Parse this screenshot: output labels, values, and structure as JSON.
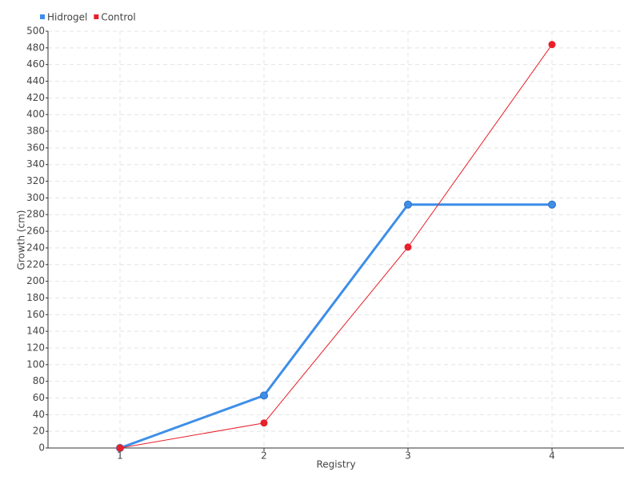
{
  "chart_data": {
    "type": "line",
    "x_label": "Registry",
    "y_label": "Growth (cm)",
    "categories": [
      "1",
      "2",
      "3",
      "4"
    ],
    "series": [
      {
        "name": "Hidrogel",
        "color": "#3d8ee8",
        "values": [
          0,
          63,
          292,
          292
        ]
      },
      {
        "name": "Control",
        "color": "#e8202a",
        "values": [
          0,
          30,
          241,
          484
        ]
      }
    ],
    "ylim": [
      0,
      500
    ],
    "yticks": [
      0,
      20,
      40,
      60,
      80,
      100,
      120,
      140,
      160,
      180,
      200,
      220,
      240,
      260,
      280,
      300,
      320,
      340,
      360,
      380,
      400,
      420,
      440,
      460,
      480,
      500
    ],
    "grid": true,
    "legend": "top-left"
  }
}
